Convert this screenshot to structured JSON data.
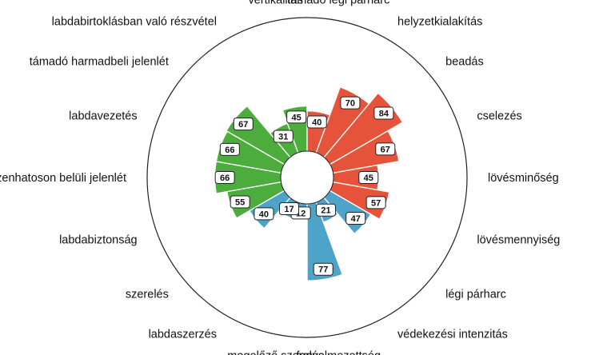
{
  "chart_data": {
    "type": "polar_bar",
    "title": "",
    "max_value": 100,
    "categories": [
      "támadó légi párharc",
      "helyzetkialakítás",
      "beadás",
      "cselezés",
      "lövésminőség",
      "lövésmennyiség",
      "légi párharc",
      "védekezési intenzitás",
      "fegyelmezettség",
      "megelőző szerelés",
      "labdaszerzés",
      "szerelés",
      "labdabiztonság",
      "tizenhatoson belüli jelenlét",
      "labdavezetés",
      "támadó harmadbeli jelenlét",
      "labdabirtoklásban való részvétel",
      "vertikalitás"
    ],
    "values": [
      40,
      70,
      84,
      67,
      45,
      57,
      47,
      21,
      77,
      12,
      17,
      40,
      55,
      66,
      66,
      67,
      31,
      45
    ],
    "groups": [
      "attack",
      "attack",
      "attack",
      "attack",
      "attack",
      "attack",
      "defense",
      "defense",
      "defense",
      "defense",
      "defense",
      "defense",
      "possession",
      "possession",
      "possession",
      "possession",
      "possession",
      "possession"
    ],
    "colors": {
      "attack": "#e5533a",
      "defense": "#4ea3c8",
      "possession": "#4dad3c"
    }
  }
}
